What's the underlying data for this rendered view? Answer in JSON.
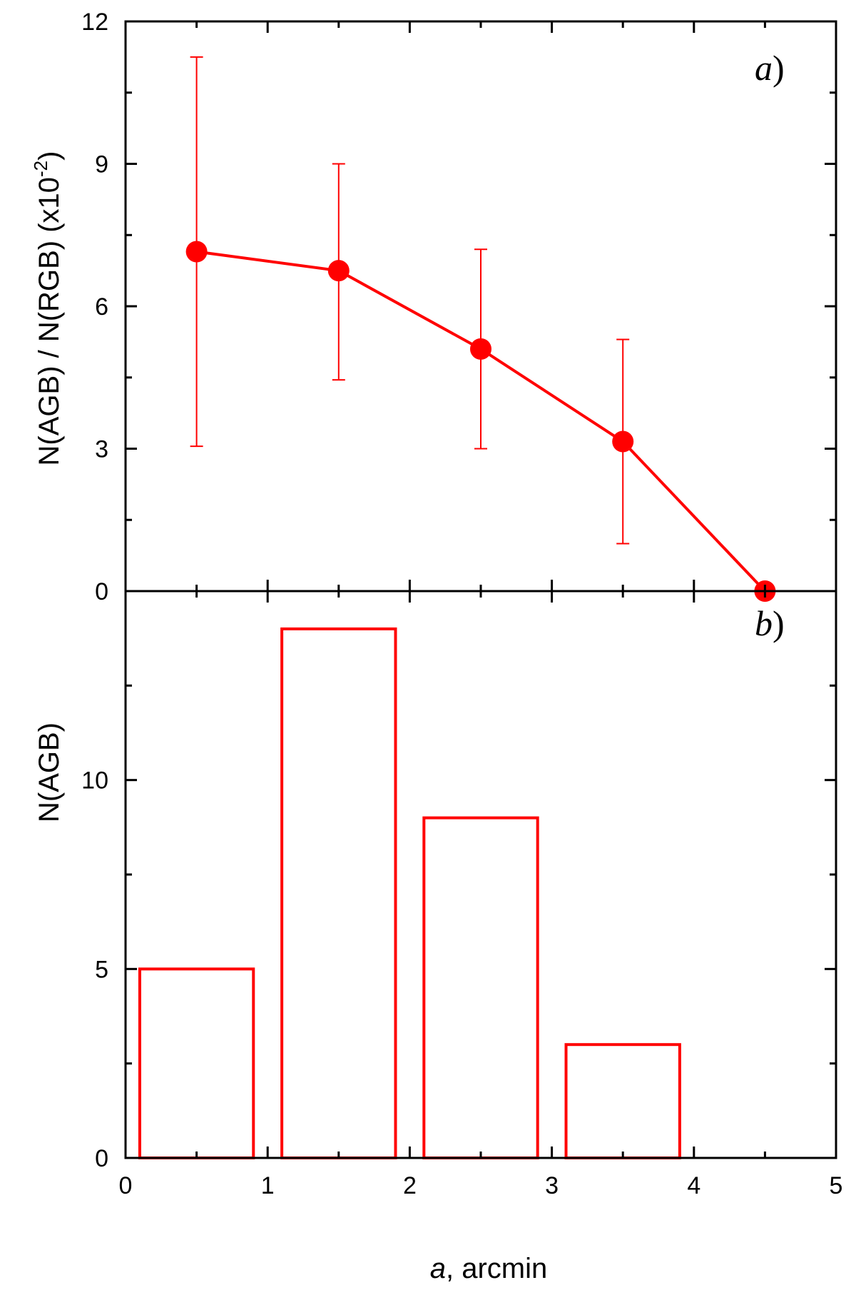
{
  "chart_data": [
    {
      "panel": "a",
      "type": "line",
      "panel_label": "a",
      "panel_label_suffix": ")",
      "ylabel_main": "N(AGB) / N(RGB) (x10",
      "ylabel_exp": "-2",
      "ylabel_close": ")",
      "xlim": [
        0,
        5
      ],
      "ylim": [
        0,
        12
      ],
      "yticks": [
        0,
        3,
        6,
        9,
        12
      ],
      "color": "#ff0000",
      "series": [
        {
          "x": [
            0.5,
            1.5,
            2.5,
            3.5,
            4.5
          ],
          "y": [
            7.15,
            6.75,
            5.1,
            3.15,
            0.0
          ],
          "err_low": [
            3.05,
            4.45,
            3.0,
            1.0,
            null
          ],
          "err_high": [
            11.25,
            9.0,
            7.2,
            5.3,
            null
          ]
        }
      ]
    },
    {
      "panel": "b",
      "type": "bar",
      "panel_label": "b",
      "panel_label_suffix": ")",
      "ylabel": "N(AGB)",
      "xlabel_italic": "a",
      "xlabel_rest": ", arcmin",
      "xlim": [
        0,
        5
      ],
      "ylim": [
        0,
        15
      ],
      "xticks": [
        0,
        1,
        2,
        3,
        4,
        5
      ],
      "yticks": [
        0,
        5,
        10
      ],
      "color": "#ff0000",
      "bins": [
        {
          "x0": 0.1,
          "x1": 0.9,
          "value": 5
        },
        {
          "x0": 1.1,
          "x1": 1.9,
          "value": 14
        },
        {
          "x0": 2.1,
          "x1": 2.9,
          "value": 9
        },
        {
          "x0": 3.1,
          "x1": 3.9,
          "value": 3
        }
      ]
    }
  ]
}
